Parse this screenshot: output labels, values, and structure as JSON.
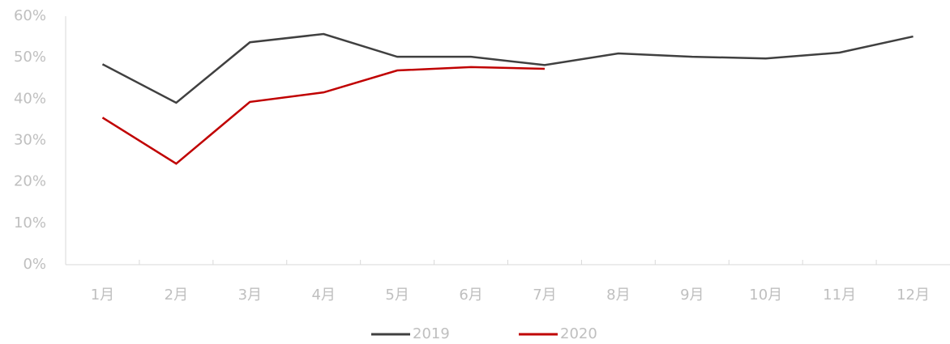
{
  "chart_data": {
    "type": "line",
    "categories": [
      "1月",
      "2月",
      "3月",
      "4月",
      "5月",
      "6月",
      "7月",
      "8月",
      "9月",
      "10月",
      "11月",
      "12月"
    ],
    "series": [
      {
        "name": "2019",
        "color": "#404040",
        "values": [
          48.4,
          39.1,
          53.7,
          55.7,
          50.2,
          50.2,
          48.2,
          51.0,
          50.2,
          49.8,
          51.2,
          55.1
        ]
      },
      {
        "name": "2020",
        "color": "#c00000",
        "values": [
          35.5,
          24.4,
          39.3,
          41.6,
          46.9,
          47.7,
          47.3,
          null,
          null,
          null,
          null,
          null
        ]
      }
    ],
    "ylim": [
      0,
      60
    ],
    "yticks": [
      {
        "value": 0,
        "label": "0%"
      },
      {
        "value": 10,
        "label": "10%"
      },
      {
        "value": 20,
        "label": "20%"
      },
      {
        "value": 30,
        "label": "30%"
      },
      {
        "value": 40,
        "label": "40%"
      },
      {
        "value": 50,
        "label": "50%"
      },
      {
        "value": 60,
        "label": "60%"
      }
    ],
    "grid": false,
    "legend": "bottom"
  }
}
